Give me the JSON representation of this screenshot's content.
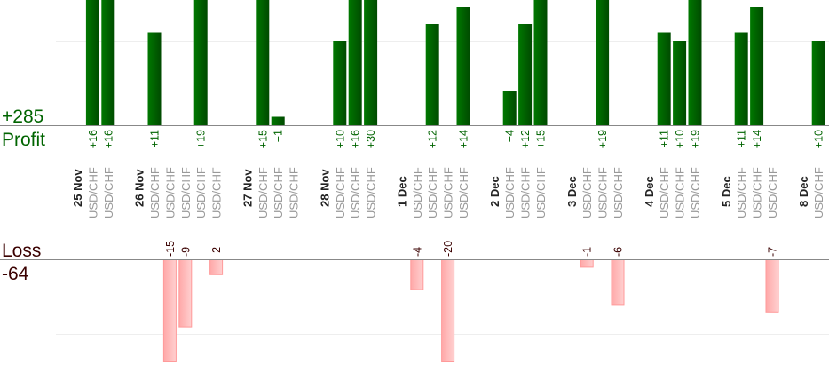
{
  "chart_data": {
    "type": "bar",
    "title": "",
    "profit_total_label": "+285",
    "profit_label": "Profit",
    "loss_label": "Loss",
    "loss_total_label": "-64",
    "gridline_value": 10,
    "colors": {
      "profit": "#006400",
      "loss": "#ffb0b0",
      "loss_border": "#ff9a9a",
      "profit_text": "#006400",
      "loss_text": "#3a0000"
    },
    "days": [
      {
        "date": "25 Nov",
        "trades": [
          {
            "symbol": "USD/CHF",
            "value": 16
          },
          {
            "symbol": "USD/CHF",
            "value": 16
          }
        ]
      },
      {
        "date": "26 Nov",
        "trades": [
          {
            "symbol": "USD/CHF",
            "value": 11
          },
          {
            "symbol": "USD/CHF",
            "value": -15
          },
          {
            "symbol": "USD/CHF",
            "value": -9
          },
          {
            "symbol": "USD/CHF",
            "value": 19
          },
          {
            "symbol": "USD/CHF",
            "value": -2
          }
        ]
      },
      {
        "date": "27 Nov",
        "trades": [
          {
            "symbol": "USD/CHF",
            "value": 15
          },
          {
            "symbol": "USD/CHF",
            "value": 1
          },
          {
            "symbol": "USD/CHF",
            "value": null
          }
        ]
      },
      {
        "date": "28 Nov",
        "trades": [
          {
            "symbol": "USD/CHF",
            "value": 10
          },
          {
            "symbol": "USD/CHF",
            "value": 16
          },
          {
            "symbol": "USD/CHF",
            "value": 30
          }
        ]
      },
      {
        "date": "1 Dec",
        "trades": [
          {
            "symbol": "USD/CHF",
            "value": -4
          },
          {
            "symbol": "USD/CHF",
            "value": 12
          },
          {
            "symbol": "USD/CHF",
            "value": -20
          },
          {
            "symbol": "USD/CHF",
            "value": 14
          }
        ]
      },
      {
        "date": "2 Dec",
        "trades": [
          {
            "symbol": "USD/CHF",
            "value": 4
          },
          {
            "symbol": "USD/CHF",
            "value": 12
          },
          {
            "symbol": "USD/CHF",
            "value": 15
          }
        ]
      },
      {
        "date": "3 Dec",
        "trades": [
          {
            "symbol": "USD/CHF",
            "value": -1
          },
          {
            "symbol": "USD/CHF",
            "value": 19
          },
          {
            "symbol": "USD/CHF",
            "value": -6
          }
        ]
      },
      {
        "date": "4 Dec",
        "trades": [
          {
            "symbol": "USD/CHF",
            "value": 11
          },
          {
            "symbol": "USD/CHF",
            "value": 10
          },
          {
            "symbol": "USD/CHF",
            "value": 19
          }
        ]
      },
      {
        "date": "5 Dec",
        "trades": [
          {
            "symbol": "USD/CHF",
            "value": 11
          },
          {
            "symbol": "USD/CHF",
            "value": 14
          },
          {
            "symbol": "USD/CHF",
            "value": -7
          }
        ]
      },
      {
        "date": "8 Dec",
        "trades": [
          {
            "symbol": "USD/CHF",
            "value": 10
          }
        ]
      }
    ]
  }
}
